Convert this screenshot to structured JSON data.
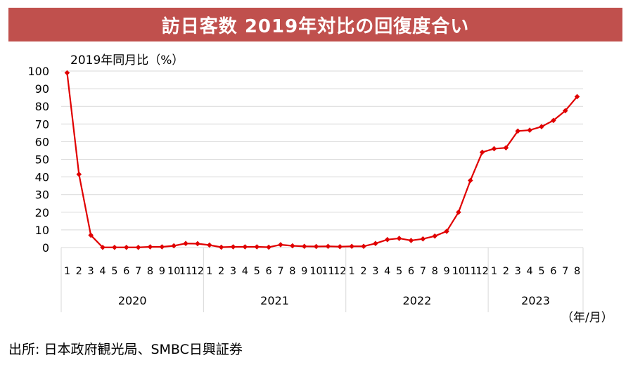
{
  "banner": {
    "title": "訪日客数 2019年対比の回復度合い"
  },
  "colors": {
    "banner": "#c0504d",
    "series": "#e00000",
    "grid": "#d9d9d9"
  },
  "source": "出所: 日本政府観光局、SMBC日興証券",
  "chart_data": {
    "type": "line",
    "title": "訪日客数 2019年対比の回復度合い",
    "ylabel": "2019年同月比（%）",
    "xlabel": "（年/月）",
    "ylim": [
      0,
      100
    ],
    "yticks": [
      "0",
      "10",
      "20",
      "30",
      "40",
      "50",
      "60",
      "70",
      "80",
      "90",
      "100"
    ],
    "grid": true,
    "markers": "diamond",
    "years": [
      {
        "label": "2020",
        "months": [
          "1",
          "2",
          "3",
          "4",
          "5",
          "6",
          "7",
          "8",
          "9",
          "10",
          "11",
          "12"
        ]
      },
      {
        "label": "2021",
        "months": [
          "1",
          "2",
          "3",
          "4",
          "5",
          "6",
          "7",
          "8",
          "9",
          "10",
          "11",
          "12"
        ]
      },
      {
        "label": "2022",
        "months": [
          "1",
          "2",
          "3",
          "4",
          "5",
          "6",
          "7",
          "8",
          "9",
          "10",
          "11",
          "12"
        ]
      },
      {
        "label": "2023",
        "months": [
          "1",
          "2",
          "3",
          "4",
          "5",
          "6",
          "7",
          "8"
        ]
      }
    ],
    "series": [
      {
        "values": [
          99,
          41.5,
          7,
          0.1,
          0.1,
          0.1,
          0.1,
          0.4,
          0.4,
          1,
          2.3,
          2.2,
          1.4,
          0.2,
          0.4,
          0.4,
          0.4,
          0.2,
          1.6,
          1,
          0.7,
          0.6,
          0.7,
          0.5,
          0.7,
          0.7,
          2.3,
          4.5,
          5.2,
          4,
          4.9,
          6.5,
          9.2,
          20,
          38,
          54,
          56,
          56.5,
          66,
          66.5,
          68.5,
          72,
          77.5,
          85.5
        ]
      }
    ]
  }
}
